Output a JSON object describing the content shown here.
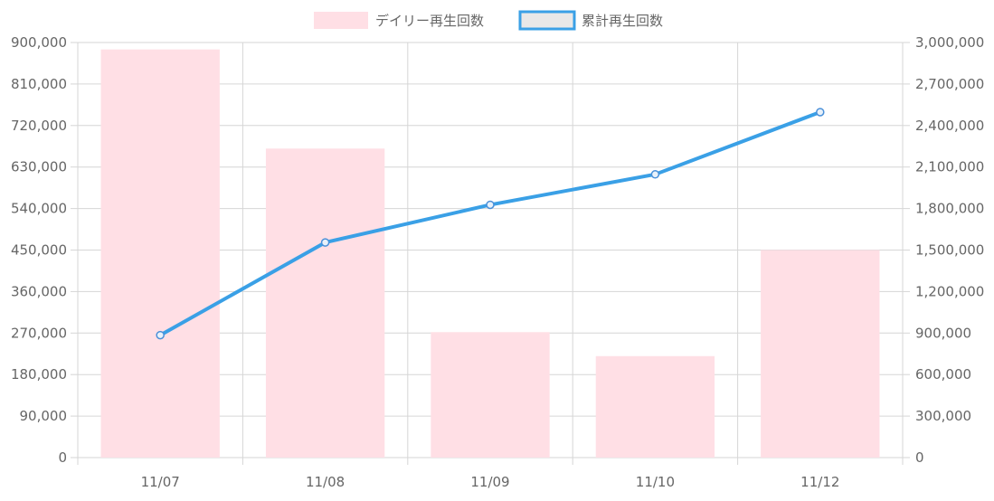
{
  "chart_data": {
    "type": "bar",
    "categories": [
      "11/07",
      "11/08",
      "11/09",
      "11/10",
      "11/12"
    ],
    "series": [
      {
        "name": "デイリー再生回数",
        "type": "bar",
        "axis": "left",
        "values": [
          885000,
          670000,
          272000,
          220000,
          450000
        ],
        "color": "#ffdfe5"
      },
      {
        "name": "累計再生回数",
        "type": "line",
        "axis": "right",
        "values": [
          885000,
          1555000,
          1827000,
          2047000,
          2497000
        ],
        "color": "#3aa0e6"
      }
    ],
    "y_left": {
      "min": 0,
      "max": 900000,
      "ticks": [
        "0",
        "90,000",
        "180,000",
        "270,000",
        "360,000",
        "450,000",
        "540,000",
        "630,000",
        "720,000",
        "810,000",
        "900,000"
      ]
    },
    "y_right": {
      "min": 0,
      "max": 3000000,
      "ticks": [
        "0",
        "300,000",
        "600,000",
        "900,000",
        "1,200,000",
        "1,500,000",
        "1,800,000",
        "2,100,000",
        "2,400,000",
        "2,700,000",
        "3,000,000"
      ]
    },
    "grid": true,
    "legend_position": "top-center"
  }
}
